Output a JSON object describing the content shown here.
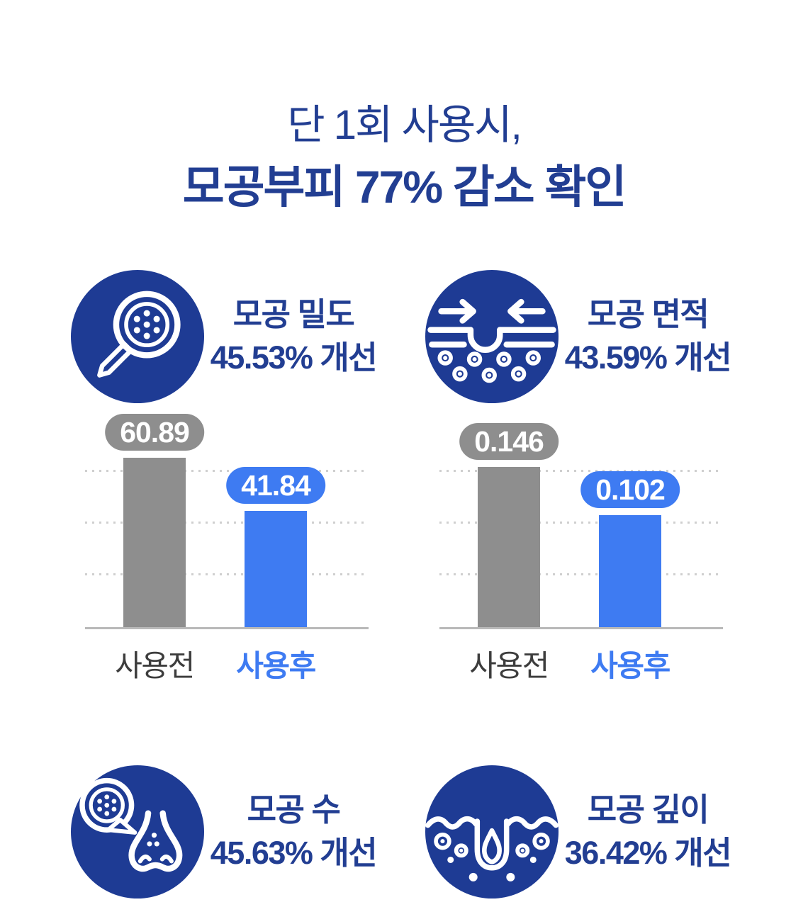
{
  "header": {
    "line1": "단 1회 사용시,",
    "line2": "모공부피 77% 감소 확인"
  },
  "features": [
    {
      "id": "pore-density",
      "icon": "magnifying-glass-pores-icon",
      "line1": "모공 밀도",
      "line2": "45.53% 개선"
    },
    {
      "id": "pore-area",
      "icon": "pore-area-shrink-icon",
      "line1": "모공 면적",
      "line2": "43.59% 개선"
    },
    {
      "id": "pore-count",
      "icon": "nose-pore-count-icon",
      "line1": "모공 수",
      "line2": "45.63% 개선"
    },
    {
      "id": "pore-depth",
      "icon": "pore-depth-sebum-drop-icon",
      "line1": "모공 깊이",
      "line2": "36.42% 개선"
    }
  ],
  "chart_data": [
    {
      "type": "bar",
      "title": "모공 밀도 사용전/사용후 비교",
      "categories": [
        "사용전",
        "사용후"
      ],
      "values": [
        60.89,
        41.84
      ],
      "value_labels": [
        "60.89",
        "41.84"
      ],
      "ylim": [
        0,
        75
      ],
      "grid": "3 dotted horizontal gridlines, solid baseline",
      "legend": "none",
      "bar_colors": [
        "#8e8e8e",
        "#3E7BF2"
      ]
    },
    {
      "type": "bar",
      "title": "모공 면적 사용전/사용후 비교",
      "categories": [
        "사용전",
        "사용후"
      ],
      "values": [
        0.146,
        0.102
      ],
      "value_labels": [
        "0.146",
        "0.102"
      ],
      "ylim": [
        0,
        0.19
      ],
      "grid": "3 dotted horizontal gridlines, solid baseline",
      "legend": "none",
      "bar_colors": [
        "#8e8e8e",
        "#3E7BF2"
      ]
    }
  ],
  "colors": {
    "navy": "#1E3B94",
    "title_navy": "#223E92",
    "accent_blue": "#3E7BF2",
    "gray": "#8e8e8e",
    "gridline": "#cfcfcf",
    "baseline": "#b9b9b9",
    "label_dark": "#3d3d3d",
    "background": "#ffffff"
  }
}
